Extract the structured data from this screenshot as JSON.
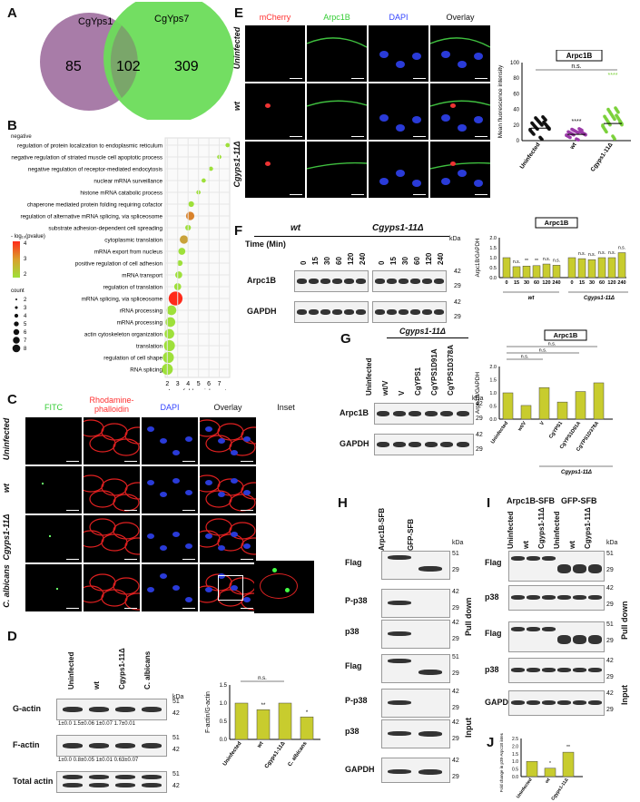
{
  "panels": {
    "A": "A",
    "B": "B",
    "C": "C",
    "D": "D",
    "E": "E",
    "F": "F",
    "G": "G",
    "H": "H",
    "I": "I",
    "J": "J"
  },
  "venn": {
    "left_label": "CgYps1",
    "right_label": "CgYps7",
    "left_only": "85",
    "overlap": "102",
    "right_only": "309",
    "left_color": "#a87ca8",
    "right_color": "#6bdc5a"
  },
  "go": {
    "top_word": "negative",
    "terms": [
      "regulation of protein localization to endoplasmic reticulum",
      "negative regulation of striated muscle cell apoptotic process",
      "negative regulation of receptor-mediated endocytosis",
      "nuclear mRNA surveillance",
      "histone mRNA catabolic process",
      "chaperone mediated protein folding requiring cofactor",
      "regulation of alternative mRNA splicing, via spliceosome",
      "substrate adhesion-dependent cell spreading",
      "cytoplasmic translation",
      "mRNA export from nucleus",
      "positive regulation of cell adhesion",
      "mRNA transport",
      "regulation of translation",
      "mRNA splicing, via spliceosome",
      "rRNA processing",
      "mRNA processing",
      "actin cytoskeleton organization",
      "translation",
      "regulation of cell shape",
      "RNA splicing"
    ],
    "fold": [
      7.8,
      7.0,
      6.2,
      5.5,
      5.0,
      4.3,
      4.2,
      4.0,
      3.6,
      3.4,
      3.2,
      3.1,
      3.0,
      2.8,
      2.4,
      2.3,
      2.2,
      2.2,
      2.1,
      2.0
    ],
    "sizes": [
      1,
      1,
      1,
      1,
      1,
      2,
      4,
      2,
      4,
      3,
      2,
      3,
      3,
      8,
      5,
      5,
      5,
      6,
      6,
      6
    ],
    "colors": [
      "#9ee03a",
      "#9ee03a",
      "#9ee03a",
      "#9ee03a",
      "#9ee03a",
      "#9ee03a",
      "#d9822b",
      "#9ee03a",
      "#c9a23a",
      "#9ee03a",
      "#9ee03a",
      "#9ee03a",
      "#9ee03a",
      "#ff2a1a",
      "#9ee03a",
      "#9ee03a",
      "#9ee03a",
      "#9ee03a",
      "#9ee03a",
      "#9ee03a"
    ],
    "xticks": [
      "2",
      "3",
      "4",
      "5",
      "6",
      "7"
    ],
    "xlabel": "Log₂ fold enrichment",
    "legend_title": "- log₁₀(pvalue)",
    "legend_vals": [
      "4",
      "3",
      "2"
    ],
    "count_title": "count",
    "count_vals": [
      "2",
      "3",
      "4",
      "5",
      "6",
      "7",
      "8"
    ]
  },
  "C": {
    "cols": [
      "FITC",
      "Rhodamine-\nphalloidin",
      "DAPI",
      "Overlay",
      "Inset"
    ],
    "rows": [
      "Uninfected",
      "wt",
      "Cgyps1-11Δ",
      "C. albicans"
    ]
  },
  "D": {
    "lanes": [
      "Uninfected",
      "wt",
      "Cgyps1-11Δ",
      "C. albicans"
    ],
    "rows": [
      "G-actin",
      "F-actin",
      "Total actin"
    ],
    "kda": "kDa",
    "g_markers": [
      "51",
      "42"
    ],
    "f_markers": [
      "51",
      "42"
    ],
    "t_markers": [
      "51",
      "42"
    ],
    "g_quant": "1±0.0   1.5±0.06  1±0.07   1.7±0.01",
    "f_quant": "1±0.0   0.8±0.05  1±0.01   0.63±0.07",
    "ylabel": "F-actin/G-actin",
    "ns": "n.s.",
    "stars": [
      "",
      "**",
      "",
      "*"
    ],
    "chart_data": {
      "type": "bar",
      "categories": [
        "Uninfected",
        "wt",
        "Cgyps1-11Δ",
        "C. albicans"
      ],
      "values": [
        1.0,
        0.82,
        1.0,
        0.62
      ],
      "ylabel": "F-actin/G-actin",
      "ylim": [
        0,
        1.5
      ],
      "yticks": [
        "0.0",
        "0.5",
        "1.0",
        "1.5"
      ]
    }
  },
  "E": {
    "cols": [
      "mCherry",
      "Arpc1B",
      "DAPI",
      "Overlay"
    ],
    "col_colors": [
      "#ff3030",
      "#33cc33",
      "#3344ff",
      "#111"
    ],
    "rows": [
      "Uninfected",
      "wt",
      "Cgyps1-11Δ"
    ],
    "box_title": "Arpc1B",
    "ns": "n.s.",
    "wt_stars": "****",
    "cg_stars": "****",
    "ylabel": "Mean fluorescence intensity",
    "chart_data": {
      "type": "scatter",
      "categories": [
        "Uninfected",
        "wt",
        "Cgyps1-11Δ"
      ],
      "means": [
        16,
        8,
        22
      ],
      "ylim": [
        0,
        100
      ],
      "yticks": [
        "0",
        "20",
        "40",
        "60",
        "80",
        "100"
      ],
      "colors": [
        "#111111",
        "#9b3aa8",
        "#7bd13a"
      ]
    }
  },
  "F": {
    "groups": [
      "wt",
      "Cgyps1-11Δ"
    ],
    "time_label": "Time (Min)",
    "times": [
      "0",
      "15",
      "30",
      "60",
      "120",
      "240"
    ],
    "rows": [
      "Arpc1B",
      "GAPDH"
    ],
    "markers": [
      "42",
      "29"
    ],
    "kda": "kDa",
    "box_title": "Arpc1B",
    "ylabel": "Arpc1B/GAPDH",
    "chart_data": {
      "type": "bar",
      "categories": [
        "0",
        "15",
        "30",
        "60",
        "120",
        "240",
        "0",
        "15",
        "30",
        "60",
        "120",
        "240"
      ],
      "values": [
        1.0,
        0.55,
        0.58,
        0.6,
        0.68,
        0.62,
        1.0,
        0.95,
        0.9,
        1.0,
        1.0,
        1.25
      ],
      "ylim": [
        0,
        2.0
      ],
      "yticks": [
        "0.0",
        "0.5",
        "1.0",
        "1.5",
        "2.0"
      ],
      "labels": [
        "",
        "n.s.",
        "**",
        "**",
        "n.s.",
        "n.s.",
        "",
        "n.s.",
        "n.s.",
        "n.s.",
        "n.s.",
        "n.s."
      ]
    },
    "group_labels": [
      "wt",
      "Cgyps1-11Δ"
    ]
  },
  "G": {
    "header": "Cgyps1-11Δ",
    "lanes": [
      "Uninfected",
      "wt/V",
      "V",
      "CgYPS1",
      "CgYPS1D91A",
      "CgYPS1D378A"
    ],
    "rows": [
      "Arpc1B",
      "GAPDH"
    ],
    "markers": [
      "42",
      "29"
    ],
    "kda": "kDa",
    "box_title": "Arpc1B",
    "ylabel": "Arpc1B/GAPDH",
    "footer": "Cgyps1-11Δ",
    "chart_data": {
      "type": "bar",
      "categories": [
        "Uninfected",
        "wt/V",
        "V",
        "CgYPS1",
        "CgYPS1D91A",
        "CgYPS1D378A"
      ],
      "values": [
        1.0,
        0.52,
        1.2,
        0.65,
        1.05,
        1.38
      ],
      "ylim": [
        0,
        2.0
      ],
      "yticks": [
        "0.0",
        "0.5",
        "1.0",
        "1.5",
        "2.0"
      ]
    },
    "ns": "n.s."
  },
  "H": {
    "lanes": [
      "Arpc1B-SFB",
      "GFP-SFB"
    ],
    "kda": "kDa",
    "rows": [
      "Flag",
      "P-p38",
      "p38",
      "Flag",
      "P-p38",
      "p38",
      "GAPDH"
    ],
    "markers": [
      [
        "51",
        "29"
      ],
      [
        "42",
        "29"
      ],
      [
        "42",
        "29"
      ],
      [
        "51",
        "29"
      ],
      [
        "42",
        "29"
      ],
      [
        "42",
        "29"
      ],
      [
        "42",
        "29"
      ]
    ],
    "side": [
      "Pull down",
      "Input"
    ]
  },
  "I": {
    "groups": [
      "Arpc1B-SFB",
      "GFP-SFB"
    ],
    "lanes": [
      "Uninfected",
      "wt",
      "Cgyps1-11Δ",
      "Uninfected",
      "wt",
      "Cgyps1-11Δ"
    ],
    "rows": [
      "Flag",
      "p38",
      "Flag",
      "p38",
      "GAPDH"
    ],
    "markers": [
      [
        "51",
        "29"
      ],
      [
        "42",
        "29"
      ],
      [
        "51",
        "29"
      ],
      [
        "42",
        "29"
      ],
      [
        "42",
        "29"
      ]
    ],
    "side": [
      "Pull down",
      "Input"
    ],
    "kda": "kDa"
  },
  "J": {
    "ylabel": "Fold change in p38-Arpc1B interaction",
    "chart_data": {
      "type": "bar",
      "categories": [
        "Uninfected",
        "wt",
        "Cgyps1-11Δ"
      ],
      "values": [
        1.0,
        0.55,
        1.6
      ],
      "ylim": [
        0,
        2.5
      ],
      "yticks": [
        "0.0",
        "0.5",
        "1.0",
        "1.5",
        "2.0",
        "2.5"
      ]
    },
    "stars": [
      "",
      "*",
      "**"
    ]
  }
}
